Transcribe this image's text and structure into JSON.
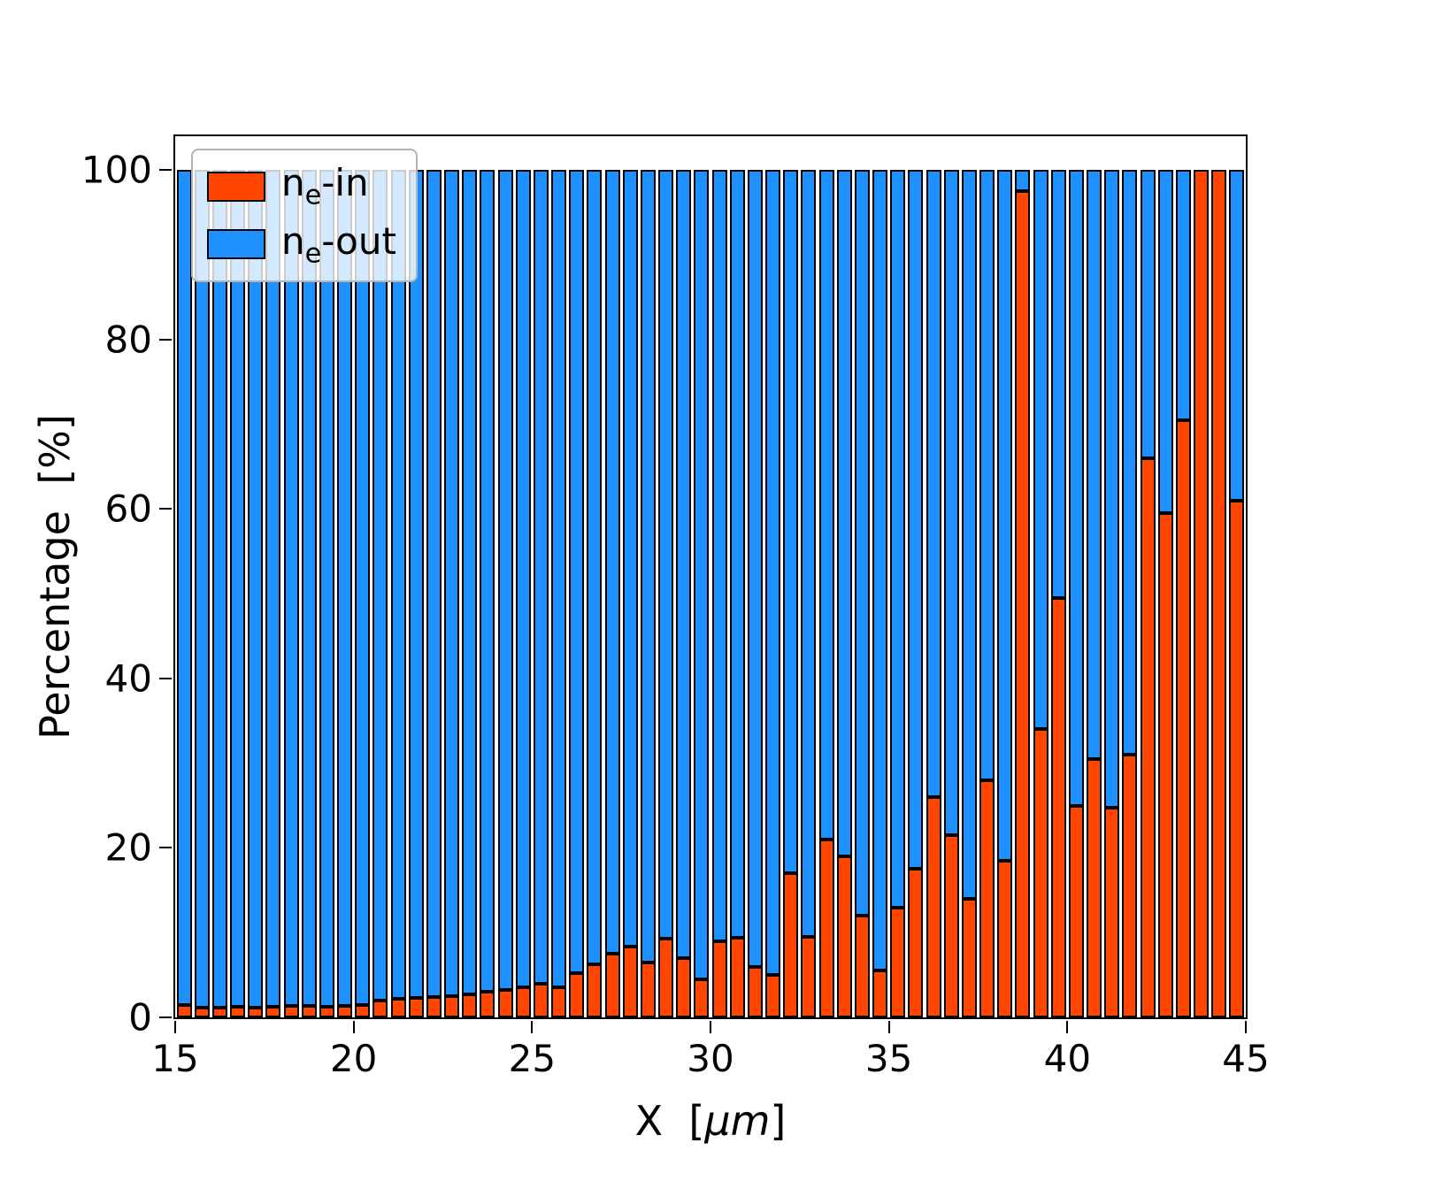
{
  "figure": {
    "background": "#ffffff"
  },
  "axes": {
    "ylabel": "Percentage  [%]",
    "xlabel_prefix": "X  [",
    "xlabel_italic": "μm",
    "xlabel_suffix": "]"
  },
  "legend": {
    "items": [
      {
        "pre": "n",
        "sub": "e",
        "post": "-in",
        "color": "#FF4500"
      },
      {
        "pre": "n",
        "sub": "e",
        "post": "-out",
        "color": "#1E90FF"
      }
    ]
  },
  "chart_data": {
    "type": "bar",
    "stacked": true,
    "title": "",
    "xlabel": "X [μm]",
    "ylabel": "Percentage [%]",
    "xlim": [
      15,
      45
    ],
    "ylim": [
      0,
      104
    ],
    "xticks": [
      15,
      20,
      25,
      30,
      35,
      40,
      45
    ],
    "yticks": [
      0,
      20,
      40,
      60,
      80,
      100
    ],
    "grid": false,
    "legend_position": "upper left",
    "edge_color": "#000000",
    "bin_width": 0.5,
    "bar_width": 0.42,
    "x": [
      15.25,
      15.75,
      16.25,
      16.75,
      17.25,
      17.75,
      18.25,
      18.75,
      19.25,
      19.75,
      20.25,
      20.75,
      21.25,
      21.75,
      22.25,
      22.75,
      23.25,
      23.75,
      24.25,
      24.75,
      25.25,
      25.75,
      26.25,
      26.75,
      27.25,
      27.75,
      28.25,
      28.75,
      29.25,
      29.75,
      30.25,
      30.75,
      31.25,
      31.75,
      32.25,
      32.75,
      33.25,
      33.75,
      34.25,
      34.75,
      35.25,
      35.75,
      36.25,
      36.75,
      37.25,
      37.75,
      38.25,
      38.75,
      39.25,
      39.75,
      40.25,
      40.75,
      41.25,
      41.75,
      42.25,
      42.75,
      43.25,
      43.75,
      44.25,
      44.75
    ],
    "series": [
      {
        "name": "nₑ-in",
        "color": "#FF4500",
        "values": [
          1.5,
          1.2,
          1.2,
          1.3,
          1.2,
          1.3,
          1.4,
          1.4,
          1.3,
          1.4,
          1.5,
          2.0,
          2.2,
          2.3,
          2.4,
          2.5,
          2.7,
          3.0,
          3.2,
          3.5,
          4.0,
          3.6,
          5.2,
          6.3,
          7.5,
          8.4,
          6.5,
          9.3,
          7.0,
          4.5,
          9.0,
          9.4,
          6.0,
          5.0,
          17.0,
          9.5,
          21.0,
          19.0,
          12.0,
          5.5,
          13.0,
          17.5,
          26.0,
          21.5,
          14.0,
          28.0,
          18.5,
          97.5,
          34.0,
          49.5,
          25.0,
          30.5,
          24.8,
          31.0,
          66.0,
          59.5,
          70.5,
          100.0,
          100.0,
          61.0
        ]
      },
      {
        "name": "nₑ-out",
        "color": "#1E90FF",
        "values": [
          98.5,
          98.8,
          98.8,
          98.7,
          98.8,
          98.7,
          98.6,
          98.6,
          98.7,
          98.6,
          98.5,
          98.0,
          97.8,
          97.7,
          97.6,
          97.5,
          97.3,
          97.0,
          96.8,
          96.5,
          96.0,
          96.4,
          94.8,
          93.7,
          92.5,
          91.6,
          93.5,
          90.7,
          93.0,
          95.5,
          91.0,
          90.6,
          94.0,
          95.0,
          83.0,
          90.5,
          79.0,
          81.0,
          88.0,
          94.5,
          87.0,
          82.5,
          74.0,
          78.5,
          86.0,
          72.0,
          81.5,
          2.5,
          66.0,
          50.5,
          75.0,
          69.5,
          75.2,
          69.0,
          34.0,
          40.5,
          29.5,
          0.0,
          0.0,
          39.0
        ]
      }
    ]
  }
}
